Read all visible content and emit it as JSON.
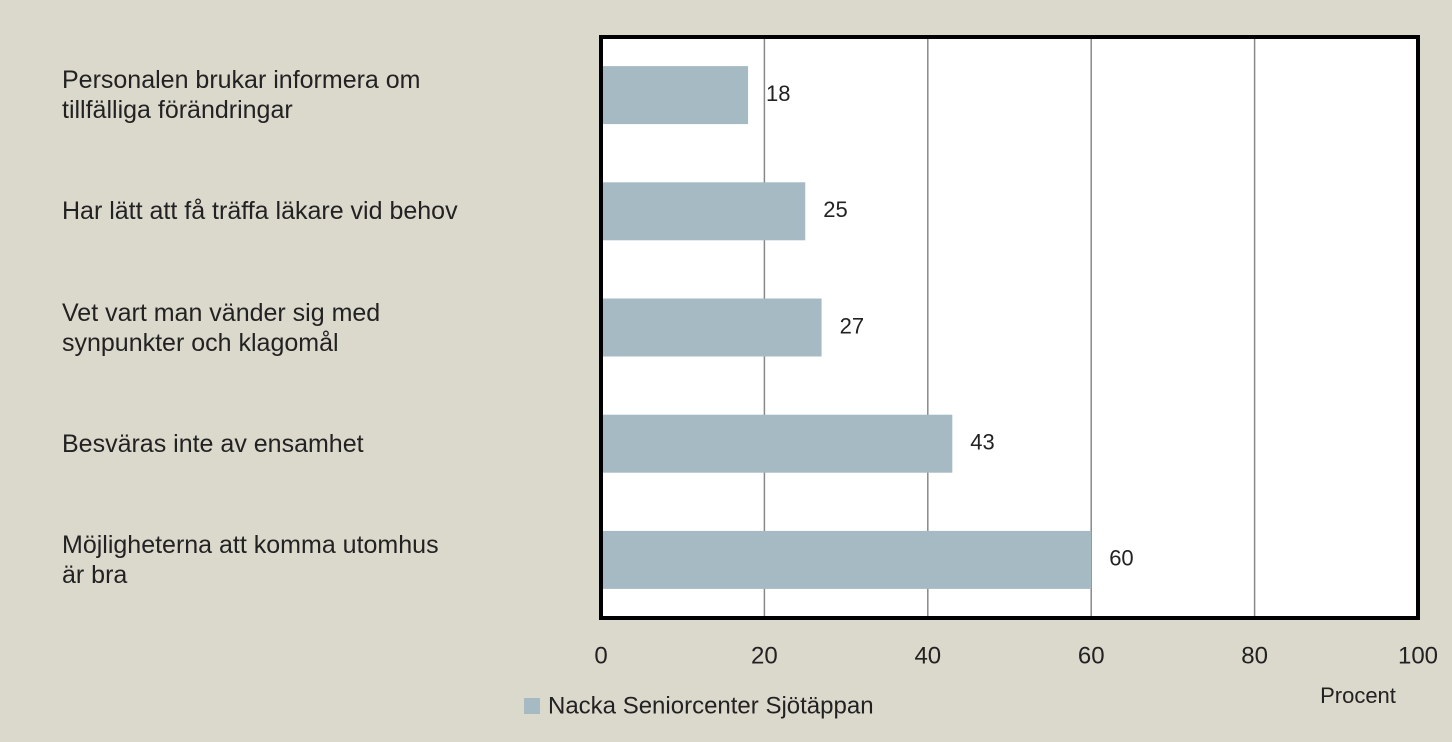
{
  "chart_data": {
    "type": "bar",
    "orientation": "horizontal",
    "categories": [
      "Personalen brukar informera om tillfälliga förändringar",
      "Har lätt att få träffa läkare vid behov",
      "Vet vart man vänder sig med synpunkter och klagomål",
      "Besväras inte av ensamhet",
      "Möjligheterna att komma utomhus är bra"
    ],
    "series": [
      {
        "name": "Nacka Seniorcenter Sjötäppan",
        "color": "#a6bac4",
        "values": [
          18,
          25,
          27,
          43,
          60
        ]
      }
    ],
    "xlim": [
      0,
      100
    ],
    "xticks": [
      0,
      20,
      40,
      60,
      80,
      100
    ],
    "xlabel": "Procent",
    "grid": true,
    "legend": "bottom"
  }
}
